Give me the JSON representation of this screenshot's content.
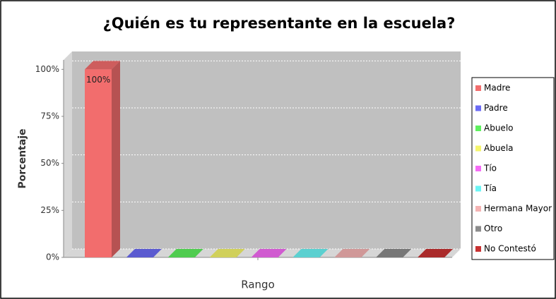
{
  "chart_data": {
    "type": "bar",
    "title": "¿Quién es tu representante en la escuela?",
    "x_label": "Rango",
    "y_label": "Porcentaje",
    "categories": [
      null
    ],
    "series": [
      {
        "name": "Madre",
        "color": "#f26d6d",
        "values": [
          100
        ],
        "value_labels": [
          "100%"
        ]
      },
      {
        "name": "Padre",
        "color": "#6b6bf5",
        "values": [
          0
        ]
      },
      {
        "name": "Abuelo",
        "color": "#5ef05e",
        "values": [
          0
        ]
      },
      {
        "name": "Abuela",
        "color": "#f5f56b",
        "values": [
          0
        ]
      },
      {
        "name": "Tío",
        "color": "#f56bf5",
        "values": [
          0
        ]
      },
      {
        "name": "Tía",
        "color": "#6bf5f5",
        "values": [
          0
        ]
      },
      {
        "name": "Hermana Mayor",
        "color": "#f5b3b3",
        "values": [
          0
        ]
      },
      {
        "name": "Otro",
        "color": "#8c8c8c",
        "values": [
          0
        ]
      },
      {
        "name": "No Contestó",
        "color": "#c83232",
        "values": [
          0
        ]
      }
    ],
    "ylim": [
      0,
      105
    ],
    "yticks": [
      {
        "value": 0,
        "label": "0%"
      },
      {
        "value": 25,
        "label": "25%"
      },
      {
        "value": 50,
        "label": "50%"
      },
      {
        "value": 75,
        "label": "75%"
      },
      {
        "value": 100,
        "label": "100%"
      }
    ],
    "grid": true,
    "legend": "right"
  }
}
